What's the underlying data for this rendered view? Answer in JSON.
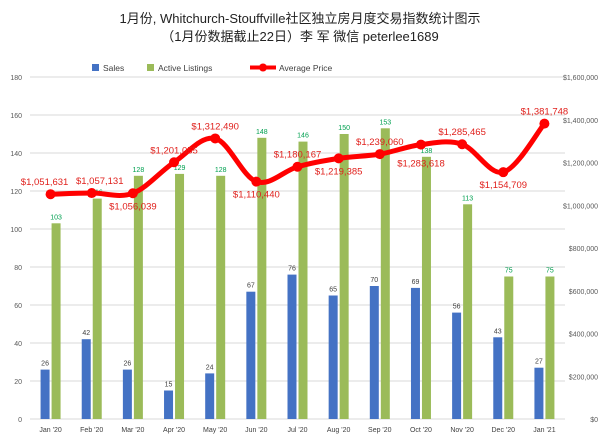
{
  "chart_data": {
    "type": "bar+line",
    "title": "1月份, Whitchurch-Stouffville社区独立房月度交易指数统计图示",
    "subtitle": "（1月份数据截止22日）李 军  微信  peterlee1689",
    "categories": [
      "Jan '20",
      "Feb '20",
      "Mar '20",
      "Apr '20",
      "May '20",
      "Jun '20",
      "Jul '20",
      "Aug '20",
      "Sep '20",
      "Oct '20",
      "Nov '20",
      "Dec '20",
      "Jan '21"
    ],
    "series": [
      {
        "name": "Sales",
        "type": "bar",
        "axis": "left",
        "color": "#4472c4",
        "values": [
          26,
          42,
          26,
          15,
          24,
          67,
          76,
          65,
          70,
          69,
          56,
          43,
          27
        ]
      },
      {
        "name": "Active Listings",
        "type": "bar",
        "axis": "left",
        "color": "#9bbb59",
        "values": [
          103,
          116,
          128,
          129,
          128,
          148,
          146,
          150,
          153,
          138,
          113,
          75,
          75
        ]
      },
      {
        "name": "Average Price",
        "type": "line",
        "axis": "right",
        "color": "#ff0000",
        "values": [
          1051631,
          1057131,
          1056039,
          1201055,
          1312490,
          1110440,
          1180167,
          1219385,
          1239060,
          1283618,
          1285465,
          1154709,
          1381748
        ],
        "labels": [
          "$1,051,631",
          "$1,057,131",
          "$1,056,039",
          "$1,201,055",
          "$1,312,490",
          "$1,110,440",
          "$1,180,167",
          "$1,219,385",
          "$1,239,060",
          "$1,283,618",
          "$1,285,465",
          "$1,154,709",
          "$1,381,748"
        ]
      }
    ],
    "left_axis": {
      "range": [
        0,
        180
      ],
      "ticks": [
        "0",
        "20",
        "40",
        "60",
        "80",
        "100",
        "120",
        "140",
        "160",
        "180"
      ]
    },
    "right_axis": {
      "range": [
        0,
        1600000
      ],
      "ticks": [
        "$0",
        "$200,000",
        "$400,000",
        "$600,000",
        "$800,000",
        "$1,000,000",
        "$1,200,000",
        "$1,400,000",
        "$1,600,000"
      ]
    },
    "grid": true,
    "legend": "top-center"
  }
}
